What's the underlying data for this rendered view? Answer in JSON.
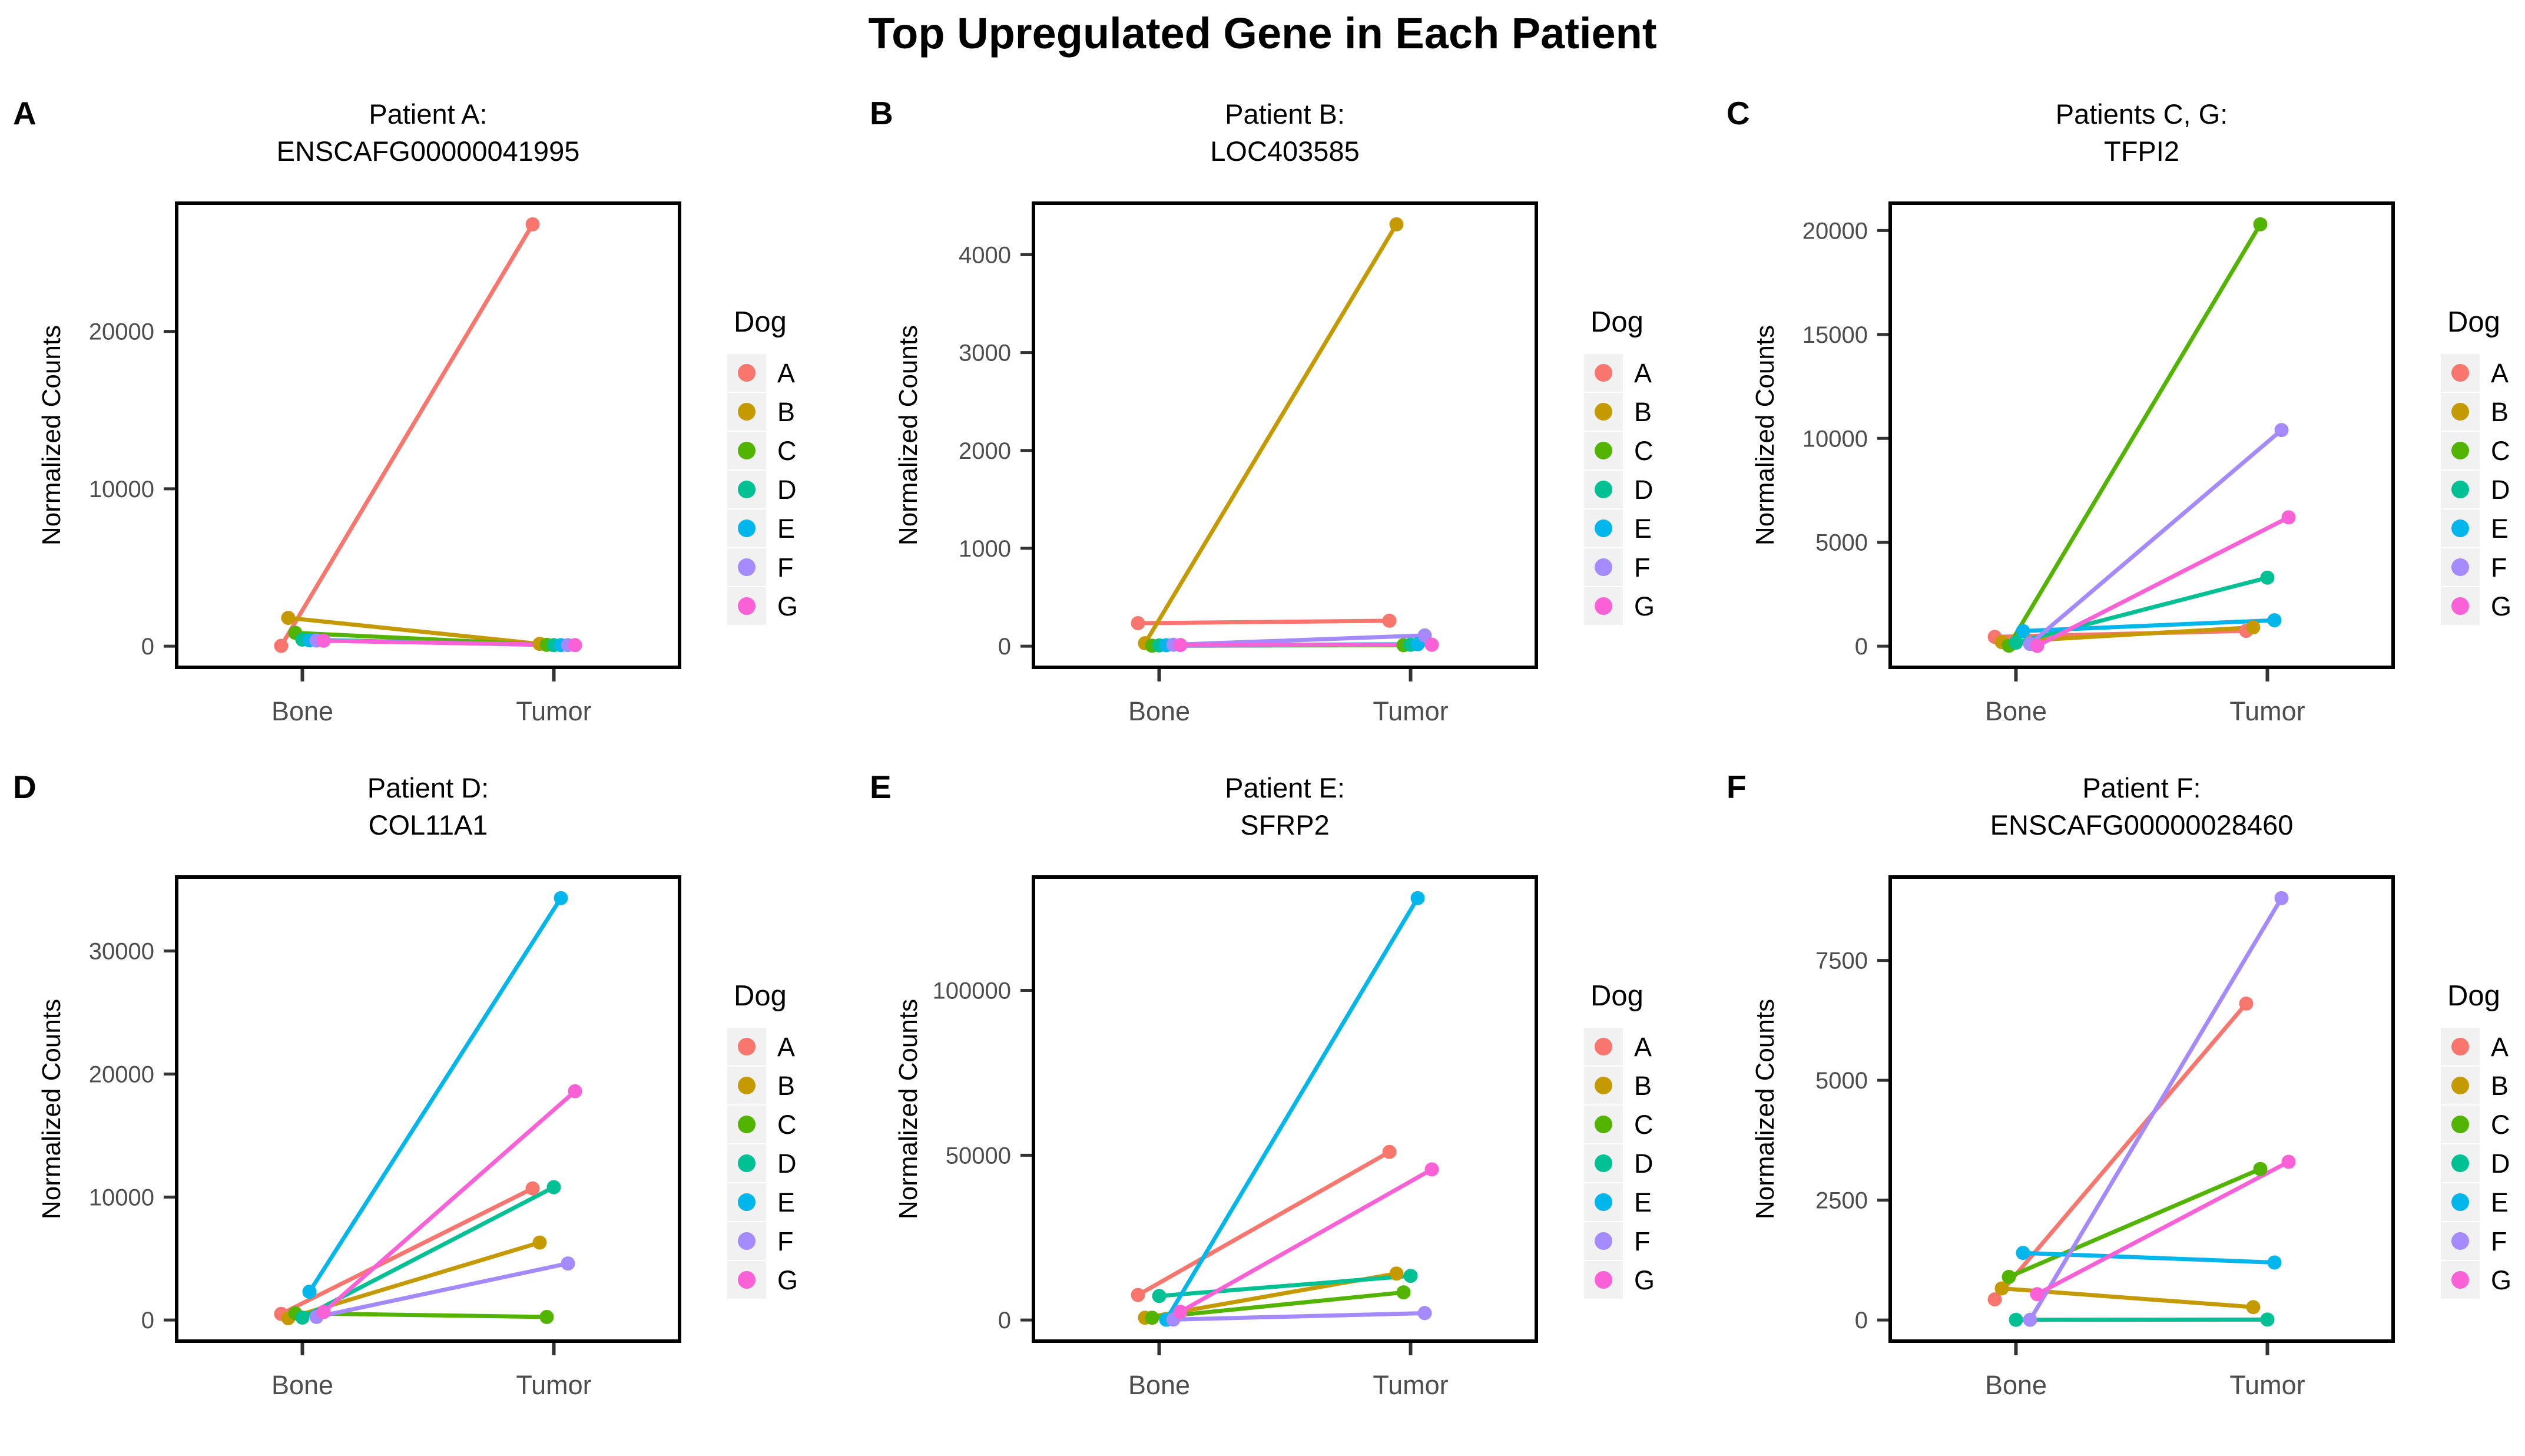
{
  "figure": {
    "title": "Top Upregulated Gene in Each Patient"
  },
  "legend": {
    "title": "Dog",
    "entries": [
      {
        "label": "A",
        "color": "#F8766D"
      },
      {
        "label": "B",
        "color": "#C49A00"
      },
      {
        "label": "C",
        "color": "#53B400"
      },
      {
        "label": "D",
        "color": "#00C094"
      },
      {
        "label": "E",
        "color": "#00B6EB"
      },
      {
        "label": "F",
        "color": "#A58AFF"
      },
      {
        "label": "G",
        "color": "#FB61D7"
      }
    ]
  },
  "axis": {
    "y_label": "Normalized Counts",
    "x_categories": [
      "Bone",
      "Tumor"
    ]
  },
  "chart_data": {
    "type": "line",
    "x": [
      "Bone",
      "Tumor"
    ],
    "grid": false,
    "legend_position": "right",
    "panels": [
      {
        "label": "A",
        "title_line1": "Patient A:",
        "title_line2": "ENSCAFG00000041995",
        "yticks": [
          0,
          10000,
          20000
        ],
        "ylim": [
          -1340,
          28140
        ],
        "series": [
          {
            "name": "A",
            "values": [
              25,
              26800
            ]
          },
          {
            "name": "B",
            "values": [
              1800,
              150
            ]
          },
          {
            "name": "C",
            "values": [
              850,
              90
            ]
          },
          {
            "name": "D",
            "values": [
              420,
              70
            ]
          },
          {
            "name": "E",
            "values": [
              380,
              70
            ]
          },
          {
            "name": "F",
            "values": [
              360,
              70
            ]
          },
          {
            "name": "G",
            "values": [
              350,
              70
            ]
          }
        ]
      },
      {
        "label": "B",
        "title_line1": "Patient B:",
        "title_line2": "LOC403585",
        "yticks": [
          0,
          1000,
          2000,
          3000,
          4000
        ],
        "ylim": [
          -216,
          4526
        ],
        "series": [
          {
            "name": "A",
            "values": [
              235,
              260
            ]
          },
          {
            "name": "B",
            "values": [
              30,
              4310
            ]
          },
          {
            "name": "C",
            "values": [
              5,
              10
            ]
          },
          {
            "name": "D",
            "values": [
              8,
              15
            ]
          },
          {
            "name": "E",
            "values": [
              10,
              20
            ]
          },
          {
            "name": "F",
            "values": [
              15,
              110
            ]
          },
          {
            "name": "G",
            "values": [
              12,
              15
            ]
          }
        ]
      },
      {
        "label": "C",
        "title_line1": "Patients C, G:",
        "title_line2": "TFPI2",
        "yticks": [
          0,
          5000,
          10000,
          15000,
          20000
        ],
        "ylim": [
          -1015,
          21315
        ],
        "series": [
          {
            "name": "A",
            "values": [
              450,
              740
            ]
          },
          {
            "name": "B",
            "values": [
              200,
              910
            ]
          },
          {
            "name": "C",
            "values": [
              30,
              20300
            ]
          },
          {
            "name": "D",
            "values": [
              170,
              3300
            ]
          },
          {
            "name": "E",
            "values": [
              730,
              1250
            ]
          },
          {
            "name": "F",
            "values": [
              110,
              10400
            ]
          },
          {
            "name": "G",
            "values": [
              20,
              6200
            ]
          }
        ]
      },
      {
        "label": "D",
        "title_line1": "Patient D:",
        "title_line2": "COL11A1",
        "yticks": [
          0,
          10000,
          20000,
          30000
        ],
        "ylim": [
          -1715,
          36015
        ],
        "series": [
          {
            "name": "A",
            "values": [
              500,
              10700
            ]
          },
          {
            "name": "B",
            "values": [
              150,
              6300
            ]
          },
          {
            "name": "C",
            "values": [
              550,
              250
            ]
          },
          {
            "name": "D",
            "values": [
              200,
              10800
            ]
          },
          {
            "name": "E",
            "values": [
              2300,
              34300
            ]
          },
          {
            "name": "F",
            "values": [
              250,
              4600
            ]
          },
          {
            "name": "G",
            "values": [
              650,
              18600
            ]
          }
        ]
      },
      {
        "label": "E",
        "title_line1": "Patient E:",
        "title_line2": "SFRP2",
        "yticks": [
          0,
          50000,
          100000
        ],
        "ylim": [
          -6400,
          134400
        ],
        "series": [
          {
            "name": "A",
            "values": [
              7600,
              51000
            ]
          },
          {
            "name": "B",
            "values": [
              700,
              14100
            ]
          },
          {
            "name": "C",
            "values": [
              700,
              8400
            ]
          },
          {
            "name": "D",
            "values": [
              7300,
              13400
            ]
          },
          {
            "name": "E",
            "values": [
              100,
              128000
            ]
          },
          {
            "name": "F",
            "values": [
              150,
              2100
            ]
          },
          {
            "name": "G",
            "values": [
              2500,
              45700
            ]
          }
        ]
      },
      {
        "label": "F",
        "title_line1": "Patient F:",
        "title_line2": "ENSCAFG00000028460",
        "yticks": [
          0,
          2500,
          5000,
          7500
        ],
        "ylim": [
          -440,
          9240
        ],
        "series": [
          {
            "name": "A",
            "values": [
              430,
              6600
            ]
          },
          {
            "name": "B",
            "values": [
              660,
              270
            ]
          },
          {
            "name": "C",
            "values": [
              900,
              3150
            ]
          },
          {
            "name": "D",
            "values": [
              5,
              10
            ]
          },
          {
            "name": "E",
            "values": [
              1400,
              1200
            ]
          },
          {
            "name": "F",
            "values": [
              5,
              8800
            ]
          },
          {
            "name": "G",
            "values": [
              540,
              3300
            ]
          }
        ]
      }
    ]
  },
  "style": {
    "panel_border_color": "#000000",
    "tick_color": "#333333",
    "tick_label_color": "#4D4D4D",
    "legend_key_bg": "#F1F1F1"
  }
}
